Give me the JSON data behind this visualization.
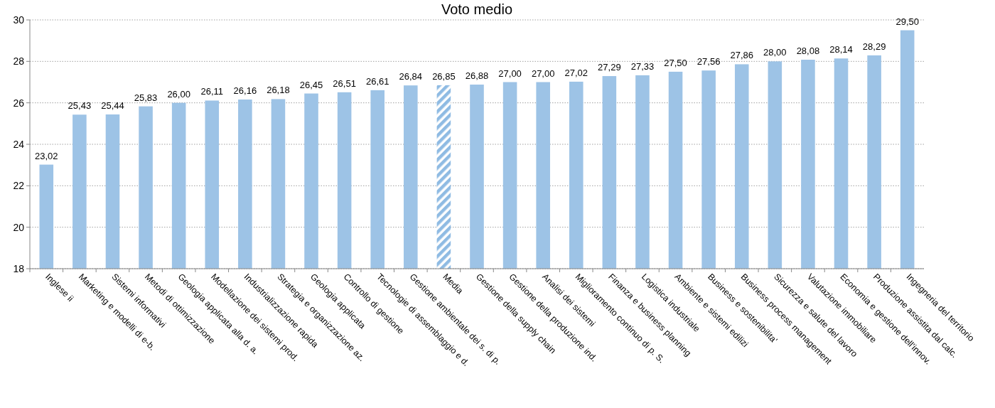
{
  "chart_data": {
    "type": "bar",
    "title": "Voto medio",
    "categories": [
      "Inglese ii",
      "Marketing e modelli di e-b.",
      "Sistemi informativi",
      "Metodi di ottimizzazione",
      "Geologia applicata alla d. a.",
      "Modellazione dei sistemi prod.",
      "Industrializzazione rapida",
      "Strategia e organizzazione az.",
      "Geologia applicata",
      "Controllo di gestione",
      "Tecnologie di assemblaggio e d.",
      "Gestione ambientale dei s. di p.",
      "Media",
      "Gestione della supply chain",
      "Gestione della produzione ind.",
      "Analisi dei sistemi",
      "Miglioramento continuo di p. S.",
      "Finanza e business planning",
      "Logistica industriale",
      "Ambiente e sistemi edilizi",
      "Business e sostenibilita'",
      "Business process management",
      "Sicurezza e salute del lavoro",
      "Valutazione immobiliare",
      "Economia e gestione dell'innov.",
      "Produzione assistita dal calc.",
      "Ingegneria del territorio"
    ],
    "values": [
      23.02,
      25.43,
      25.44,
      25.83,
      26.0,
      26.11,
      26.16,
      26.18,
      26.45,
      26.51,
      26.61,
      26.84,
      26.85,
      26.88,
      27.0,
      27.0,
      27.02,
      27.29,
      27.33,
      27.5,
      27.56,
      27.86,
      28.0,
      28.08,
      28.14,
      28.29,
      29.5
    ],
    "value_labels": [
      "23,02",
      "25,43",
      "25,44",
      "25,83",
      "26,00",
      "26,11",
      "26,16",
      "26,18",
      "26,45",
      "26,51",
      "26,61",
      "26,84",
      "26,85",
      "26,88",
      "27,00",
      "27,00",
      "27,02",
      "27,29",
      "27,33",
      "27,50",
      "27,56",
      "27,86",
      "28,00",
      "28,08",
      "28,14",
      "28,29",
      "29,50"
    ],
    "colors": [
      "#9dc3e6",
      "#9dc3e6",
      "#9dc3e6",
      "#9dc3e6",
      "#9dc3e6",
      "#9dc3e6",
      "#9dc3e6",
      "#9dc3e6",
      "#9dc3e6",
      "#9dc3e6",
      "#9dc3e6",
      "#9dc3e6",
      "#8fbbe3",
      "#9dc3e6",
      "#9dc3e6",
      "#9dc3e6",
      "#9dc3e6",
      "#9dc3e6",
      "#9dc3e6",
      "#9dc3e6",
      "#9dc3e6",
      "#9dc3e6",
      "#9dc3e6",
      "#9dc3e6",
      "#9dc3e6",
      "#9dc3e6",
      "#9dc3e6"
    ],
    "ylim": [
      18,
      30
    ],
    "yticks": [
      18,
      20,
      22,
      24,
      26,
      28,
      30
    ],
    "grid": "y"
  }
}
